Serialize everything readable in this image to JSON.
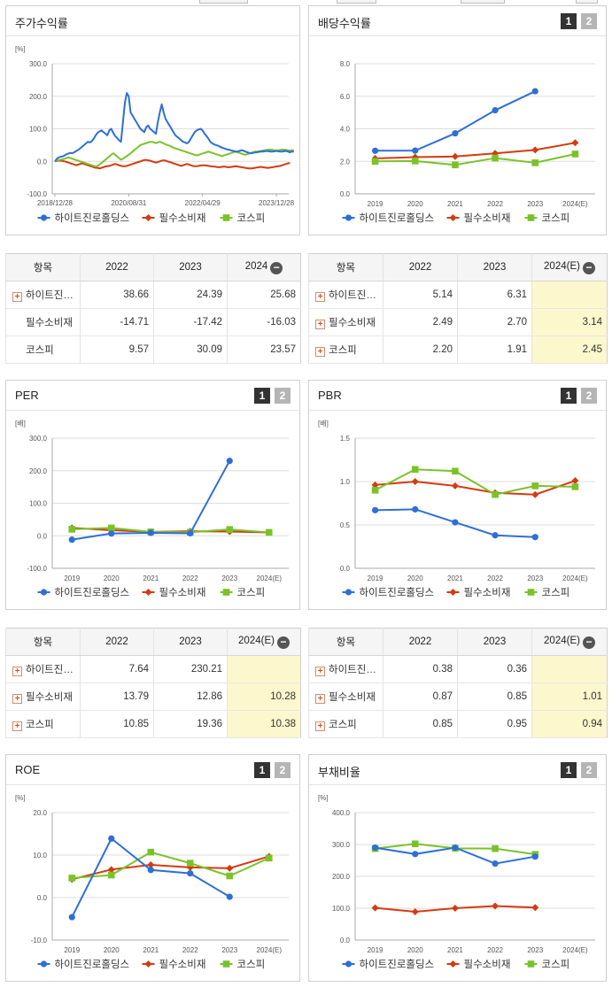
{
  "colors": {
    "company": "#2e6fd6",
    "sector": "#d43b10",
    "kospi": "#7bc22a"
  },
  "icons": {
    "expand": "plus-icon",
    "collapse": "minus-icon"
  },
  "legend": {
    "company": "하이트진로홀딩스",
    "sector": "필수소비재",
    "kospi": "코스피"
  },
  "panels": {
    "price": {
      "title": "주가수익률"
    },
    "dividend": {
      "title": "배당수익률",
      "page1": "1",
      "page2": "2"
    },
    "per": {
      "title": "PER",
      "page1": "1",
      "page2": "2"
    },
    "pbr": {
      "title": "PBR",
      "page1": "1",
      "page2": "2"
    },
    "roe": {
      "title": "ROE",
      "page1": "1",
      "page2": "2"
    },
    "debt": {
      "title": "부채비율",
      "page1": "1",
      "page2": "2"
    }
  },
  "tables": {
    "price": {
      "header": [
        "항목",
        "2022",
        "2023",
        "2024"
      ],
      "rows": [
        {
          "name": "하이트진…",
          "values": [
            "38.66",
            "24.39",
            "25.68"
          ],
          "expandable": true
        },
        {
          "name": "필수소비재",
          "values": [
            "-14.71",
            "-17.42",
            "-16.03"
          ],
          "expandable": false
        },
        {
          "name": "코스피",
          "values": [
            "9.57",
            "30.09",
            "23.57"
          ],
          "expandable": false
        }
      ]
    },
    "dividend": {
      "header": [
        "항목",
        "2022",
        "2023",
        "2024(E)"
      ],
      "rows": [
        {
          "name": "하이트진…",
          "values": [
            "5.14",
            "6.31",
            ""
          ],
          "expandable": true
        },
        {
          "name": "필수소비재",
          "values": [
            "2.49",
            "2.70",
            "3.14"
          ],
          "expandable": true
        },
        {
          "name": "코스피",
          "values": [
            "2.20",
            "1.91",
            "2.45"
          ],
          "expandable": true
        }
      ]
    },
    "per": {
      "header": [
        "항목",
        "2022",
        "2023",
        "2024(E)"
      ],
      "rows": [
        {
          "name": "하이트진…",
          "values": [
            "7.64",
            "230.21",
            ""
          ],
          "expandable": true
        },
        {
          "name": "필수소비재",
          "values": [
            "13.79",
            "12.86",
            "10.28"
          ],
          "expandable": true
        },
        {
          "name": "코스피",
          "values": [
            "10.85",
            "19.36",
            "10.38"
          ],
          "expandable": true
        }
      ]
    },
    "pbr": {
      "header": [
        "항목",
        "2022",
        "2023",
        "2024(E)"
      ],
      "rows": [
        {
          "name": "하이트진…",
          "values": [
            "0.38",
            "0.36",
            ""
          ],
          "expandable": true
        },
        {
          "name": "필수소비재",
          "values": [
            "0.87",
            "0.85",
            "1.01"
          ],
          "expandable": true
        },
        {
          "name": "코스피",
          "values": [
            "0.85",
            "0.95",
            "0.94"
          ],
          "expandable": true
        }
      ]
    }
  },
  "chart_data": [
    {
      "id": "price",
      "type": "line",
      "unit": "[%]",
      "ylim": [
        -100,
        300
      ],
      "yticks": [
        "300.0",
        "200.0",
        "100.0",
        "0.0",
        "-100.0"
      ],
      "xticks": [
        "2018/12/28",
        "2020/08/31",
        "2022/04/29",
        "2023/12/28"
      ],
      "n": 120,
      "series": [
        {
          "name": "하이트진로홀딩스",
          "key": "company",
          "values": [
            0,
            8,
            12,
            14,
            15,
            18,
            22,
            24,
            26,
            25,
            28,
            32,
            35,
            40,
            45,
            50,
            55,
            60,
            58,
            62,
            70,
            80,
            88,
            92,
            95,
            90,
            85,
            80,
            95,
            100,
            88,
            78,
            72,
            65,
            60,
            120,
            180,
            210,
            200,
            150,
            140,
            130,
            120,
            110,
            100,
            95,
            90,
            105,
            110,
            100,
            95,
            90,
            85,
            120,
            150,
            175,
            150,
            130,
            120,
            110,
            100,
            90,
            80,
            75,
            70,
            65,
            60,
            58,
            55,
            60,
            70,
            80,
            90,
            95,
            98,
            100,
            95,
            85,
            78,
            70,
            60,
            55,
            52,
            50,
            48,
            45,
            42,
            40,
            38,
            36,
            35,
            33,
            32,
            30,
            30,
            32,
            34,
            33,
            30,
            28,
            26,
            25,
            26,
            27,
            28,
            29,
            30,
            30,
            31,
            32,
            31,
            30,
            30,
            31,
            32,
            31,
            30,
            30,
            31,
            32,
            30,
            28,
            30,
            30
          ]
        },
        {
          "name": "필수소비재",
          "key": "sector",
          "values": [
            0,
            1,
            2,
            2,
            1,
            0,
            -2,
            -4,
            -6,
            -8,
            -10,
            -12,
            -10,
            -8,
            -6,
            -8,
            -10,
            -12,
            -14,
            -16,
            -18,
            -20,
            -20,
            -22,
            -20,
            -18,
            -16,
            -15,
            -14,
            -12,
            -10,
            -8,
            -10,
            -12,
            -14,
            -15,
            -15,
            -14,
            -12,
            -10,
            -8,
            -6,
            -4,
            -2,
            0,
            2,
            4,
            4,
            3,
            2,
            0,
            -2,
            -4,
            -2,
            0,
            2,
            3,
            2,
            0,
            -2,
            -4,
            -6,
            -8,
            -10,
            -12,
            -14,
            -12,
            -10,
            -8,
            -10,
            -12,
            -14,
            -15,
            -15,
            -14,
            -13,
            -12,
            -12,
            -13,
            -14,
            -15,
            -16,
            -16,
            -17,
            -18,
            -18,
            -17,
            -16,
            -17,
            -18,
            -18,
            -17,
            -16,
            -15,
            -16,
            -17,
            -18,
            -19,
            -20,
            -21,
            -22,
            -22,
            -21,
            -20,
            -19,
            -18,
            -17,
            -18,
            -19,
            -20,
            -20,
            -19,
            -18,
            -17,
            -16,
            -15,
            -14,
            -12,
            -10,
            -8,
            -6,
            -5
          ]
        },
        {
          "name": "코스피",
          "key": "kospi",
          "values": [
            0,
            2,
            4,
            5,
            6,
            8,
            10,
            12,
            10,
            8,
            6,
            4,
            2,
            0,
            -2,
            -4,
            -6,
            -8,
            -10,
            -12,
            -14,
            -16,
            -14,
            -10,
            -5,
            0,
            5,
            10,
            15,
            20,
            25,
            20,
            15,
            10,
            5,
            8,
            12,
            16,
            20,
            25,
            30,
            35,
            40,
            45,
            50,
            52,
            54,
            56,
            58,
            60,
            60,
            58,
            56,
            58,
            60,
            58,
            55,
            52,
            50,
            48,
            45,
            42,
            40,
            38,
            36,
            34,
            32,
            30,
            28,
            26,
            24,
            22,
            20,
            18,
            20,
            22,
            24,
            26,
            28,
            30,
            28,
            26,
            24,
            22,
            20,
            18,
            16,
            18,
            20,
            22,
            24,
            26,
            28,
            30,
            28,
            26,
            24,
            22,
            20,
            22,
            24,
            26,
            28,
            30,
            30,
            31,
            32,
            33,
            34,
            35,
            36,
            36,
            35,
            34,
            33,
            34,
            35,
            36,
            36,
            35,
            34,
            33,
            34,
            34
          ]
        }
      ]
    },
    {
      "id": "dividend",
      "type": "line",
      "unit": "",
      "ylim": [
        0,
        8
      ],
      "yticks": [
        "8.0",
        "6.0",
        "4.0",
        "2.0",
        "0.0"
      ],
      "categories": [
        "2019",
        "2020",
        "2021",
        "2022",
        "2023",
        "2024(E)"
      ],
      "series": [
        {
          "name": "하이트진로홀딩스",
          "key": "company",
          "values": [
            2.65,
            2.66,
            3.72,
            5.14,
            6.31,
            null
          ]
        },
        {
          "name": "필수소비재",
          "key": "sector",
          "values": [
            2.18,
            2.26,
            2.3,
            2.49,
            2.7,
            3.14
          ]
        },
        {
          "name": "코스피",
          "key": "kospi",
          "values": [
            2.0,
            2.02,
            1.78,
            2.2,
            1.91,
            2.45
          ]
        }
      ]
    },
    {
      "id": "per",
      "type": "line",
      "unit": "[배]",
      "ylim": [
        -100,
        300
      ],
      "yticks": [
        "300.0",
        "200.0",
        "100.0",
        "0.0",
        "-100.0"
      ],
      "categories": [
        "2019",
        "2020",
        "2021",
        "2022",
        "2023",
        "2024(E)"
      ],
      "series": [
        {
          "name": "하이트진로홀딩스",
          "key": "company",
          "values": [
            -12,
            7,
            9,
            7.64,
            230.21,
            null
          ]
        },
        {
          "name": "필수소비재",
          "key": "sector",
          "values": [
            24,
            17,
            12,
            13.79,
            12.86,
            10.28
          ]
        },
        {
          "name": "코스피",
          "key": "kospi",
          "values": [
            20,
            24,
            12,
            10.85,
            19.36,
            10.38
          ]
        }
      ]
    },
    {
      "id": "pbr",
      "type": "line",
      "unit": "[배]",
      "ylim": [
        0,
        1.5
      ],
      "yticks": [
        "1.5",
        "1.0",
        "0.5",
        "0.0"
      ],
      "categories": [
        "2019",
        "2020",
        "2021",
        "2022",
        "2023",
        "2024(E)"
      ],
      "series": [
        {
          "name": "하이트진로홀딩스",
          "key": "company",
          "values": [
            0.67,
            0.68,
            0.53,
            0.38,
            0.36,
            null
          ]
        },
        {
          "name": "필수소비재",
          "key": "sector",
          "values": [
            0.96,
            1.0,
            0.95,
            0.87,
            0.85,
            1.01
          ]
        },
        {
          "name": "코스피",
          "key": "kospi",
          "values": [
            0.9,
            1.14,
            1.12,
            0.85,
            0.95,
            0.94
          ]
        }
      ]
    },
    {
      "id": "roe",
      "type": "line",
      "unit": "[%]",
      "ylim": [
        -10,
        20
      ],
      "yticks": [
        "20.0",
        "10.0",
        "0.0",
        "-10.0"
      ],
      "categories": [
        "2019",
        "2020",
        "2021",
        "2022",
        "2023",
        "2024(E)"
      ],
      "series": [
        {
          "name": "하이트진로홀딩스",
          "key": "company",
          "values": [
            -4.6,
            13.9,
            6.5,
            5.7,
            0.2,
            null
          ]
        },
        {
          "name": "필수소비재",
          "key": "sector",
          "values": [
            4.3,
            6.6,
            7.7,
            7.1,
            6.9,
            9.7
          ]
        },
        {
          "name": "코스피",
          "key": "kospi",
          "values": [
            4.6,
            5.3,
            10.7,
            8.1,
            5.1,
            9.3
          ]
        }
      ]
    },
    {
      "id": "debt",
      "type": "line",
      "unit": "[%]",
      "ylim": [
        0,
        400
      ],
      "yticks": [
        "400.0",
        "300.0",
        "200.0",
        "100.0",
        "0.0"
      ],
      "categories": [
        "2019",
        "2020",
        "2021",
        "2022",
        "2023",
        "2024(E)"
      ],
      "series": [
        {
          "name": "하이트진로홀딩스",
          "key": "company",
          "values": [
            290,
            270,
            290,
            240,
            262,
            null
          ]
        },
        {
          "name": "필수소비재",
          "key": "sector",
          "values": [
            101,
            89,
            100,
            107,
            102,
            null
          ]
        },
        {
          "name": "코스피",
          "key": "kospi",
          "values": [
            287,
            302,
            288,
            287,
            269,
            null
          ]
        }
      ]
    }
  ]
}
